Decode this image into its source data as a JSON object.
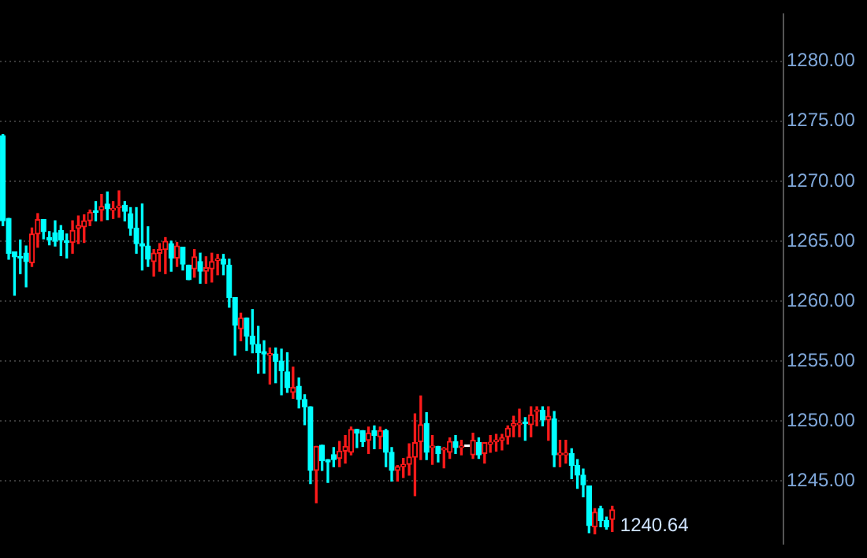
{
  "chart_data": {
    "type": "candlestick",
    "categories": [
      null,
      null,
      null,
      null,
      null,
      null,
      null,
      null,
      null,
      null,
      null,
      null,
      null,
      null,
      null,
      null,
      null,
      null,
      null,
      null,
      null,
      null,
      null,
      null,
      null,
      null,
      null,
      null,
      null,
      null,
      null,
      null,
      null,
      null,
      null,
      null,
      null,
      null,
      null,
      null,
      null,
      null,
      null,
      null,
      null,
      null,
      null,
      null,
      null,
      null,
      null,
      null,
      null,
      null,
      null,
      null,
      null,
      null,
      null,
      null,
      null,
      null,
      null,
      null,
      null,
      null,
      null,
      null,
      null,
      null,
      null,
      null,
      null,
      null,
      null,
      null,
      null,
      null,
      null,
      null,
      null,
      null,
      null,
      null,
      null,
      null,
      null,
      null,
      null,
      null,
      null,
      null,
      null,
      null,
      null,
      null,
      null,
      null,
      null,
      null,
      null,
      null,
      null,
      null,
      null,
      null,
      null,
      null,
      null,
      null,
      null,
      null,
      null,
      null,
      null,
      null,
      null,
      null,
      null,
      null,
      null,
      null,
      null,
      null,
      null,
      null,
      null,
      null,
      null,
      null,
      null,
      null,
      null,
      null,
      null
    ],
    "ohlc": [
      [
        1273.8,
        1273.9,
        1266.3,
        1266.7
      ],
      [
        1266.9,
        1266.9,
        1263.5,
        1264.0
      ],
      [
        1264.1,
        1264.1,
        1260.5,
        1263.7
      ],
      [
        1263.7,
        1265.1,
        1262.3,
        1263.6
      ],
      [
        1264.0,
        1264.6,
        1261.2,
        1263.3
      ],
      [
        1263.2,
        1266.1,
        1262.9,
        1265.6
      ],
      [
        1265.6,
        1267.3,
        1264.5,
        1266.8
      ],
      [
        1266.8,
        1266.8,
        1265.2,
        1265.8
      ],
      [
        1265.3,
        1265.8,
        1264.7,
        1265.1
      ],
      [
        1265.7,
        1266.7,
        1264.6,
        1265.0
      ],
      [
        1265.9,
        1266.3,
        1263.8,
        1265.1
      ],
      [
        1265.0,
        1265.6,
        1263.6,
        1264.9
      ],
      [
        1264.9,
        1266.7,
        1264.0,
        1265.9
      ],
      [
        1266.1,
        1267.1,
        1264.8,
        1266.3
      ],
      [
        1266.2,
        1267.2,
        1264.9,
        1266.7
      ],
      [
        1266.7,
        1267.6,
        1266.3,
        1267.4
      ],
      [
        1267.5,
        1268.3,
        1266.7,
        1267.4
      ],
      [
        1267.6,
        1268.9,
        1266.7,
        1267.9
      ],
      [
        1268.1,
        1269.1,
        1266.8,
        1267.7
      ],
      [
        1267.6,
        1268.3,
        1266.9,
        1267.7
      ],
      [
        1267.8,
        1269.2,
        1267.0,
        1267.9
      ],
      [
        1268.0,
        1268.3,
        1266.7,
        1267.5
      ],
      [
        1267.3,
        1267.8,
        1265.5,
        1266.1
      ],
      [
        1266.1,
        1267.8,
        1264.0,
        1264.8
      ],
      [
        1264.8,
        1268.1,
        1262.6,
        1264.6
      ],
      [
        1264.6,
        1266.2,
        1262.9,
        1263.5
      ],
      [
        1263.3,
        1264.3,
        1262.1,
        1264.0
      ],
      [
        1264.0,
        1264.8,
        1262.5,
        1264.3
      ],
      [
        1264.3,
        1265.3,
        1262.3,
        1265.0
      ],
      [
        1264.8,
        1265.0,
        1262.5,
        1263.6
      ],
      [
        1263.6,
        1264.9,
        1262.9,
        1264.6
      ],
      [
        1264.5,
        1264.5,
        1262.6,
        1263.1
      ],
      [
        1263.0,
        1263.0,
        1261.8,
        1261.8
      ],
      [
        1262.7,
        1264.3,
        1262.0,
        1263.7
      ],
      [
        1263.3,
        1264.0,
        1261.5,
        1262.5
      ],
      [
        1262.5,
        1263.7,
        1261.5,
        1262.8
      ],
      [
        1262.7,
        1264.0,
        1261.6,
        1263.3
      ],
      [
        1263.4,
        1263.9,
        1262.2,
        1263.5
      ],
      [
        1263.5,
        1263.9,
        1262.2,
        1263.1
      ],
      [
        1263.0,
        1263.5,
        1259.5,
        1260.3
      ],
      [
        1260.3,
        1260.3,
        1255.5,
        1258.0
      ],
      [
        1257.7,
        1259.0,
        1256.7,
        1258.6
      ],
      [
        1258.6,
        1258.6,
        1255.9,
        1257.1
      ],
      [
        1257.1,
        1259.3,
        1255.7,
        1256.4
      ],
      [
        1256.4,
        1257.9,
        1254.0,
        1255.7
      ],
      [
        1255.8,
        1256.7,
        1254.0,
        1255.6
      ],
      [
        1255.5,
        1256.1,
        1253.1,
        1255.6
      ],
      [
        1255.6,
        1256.1,
        1253.2,
        1255.0
      ],
      [
        1255.0,
        1256.0,
        1252.2,
        1254.2
      ],
      [
        1254.1,
        1255.7,
        1252.4,
        1252.8
      ],
      [
        1252.4,
        1254.5,
        1251.9,
        1252.8
      ],
      [
        1252.9,
        1253.6,
        1251.1,
        1251.8
      ],
      [
        1251.8,
        1252.2,
        1249.7,
        1251.2
      ],
      [
        1251.2,
        1251.2,
        1244.8,
        1245.9
      ],
      [
        1245.9,
        1247.9,
        1243.2,
        1247.9
      ],
      [
        1248.0,
        1248.0,
        1245.9,
        1246.7
      ],
      [
        1246.8,
        1246.8,
        1244.9,
        1246.6
      ],
      [
        1247.2,
        1247.8,
        1246.2,
        1246.8
      ],
      [
        1246.9,
        1248.3,
        1246.2,
        1247.5
      ],
      [
        1247.5,
        1248.8,
        1246.5,
        1247.9
      ],
      [
        1247.4,
        1249.5,
        1247.2,
        1249.3
      ],
      [
        1249.3,
        1249.3,
        1247.8,
        1249.0
      ],
      [
        1249.2,
        1249.2,
        1247.9,
        1248.3
      ],
      [
        1248.4,
        1249.5,
        1247.3,
        1249.0
      ],
      [
        1249.2,
        1249.6,
        1247.7,
        1248.8
      ],
      [
        1248.7,
        1249.5,
        1247.7,
        1249.2
      ],
      [
        1249.2,
        1249.3,
        1246.2,
        1247.4
      ],
      [
        1247.4,
        1247.8,
        1245.0,
        1245.9
      ],
      [
        1245.9,
        1246.3,
        1245.0,
        1246.2
      ],
      [
        1246.2,
        1246.9,
        1245.3,
        1246.4
      ],
      [
        1246.4,
        1248.1,
        1245.5,
        1247.0
      ],
      [
        1247.0,
        1250.6,
        1243.8,
        1248.2
      ],
      [
        1248.3,
        1252.1,
        1246.8,
        1249.7
      ],
      [
        1249.8,
        1250.7,
        1246.8,
        1247.4
      ],
      [
        1247.8,
        1248.8,
        1246.4,
        1247.9
      ],
      [
        1247.9,
        1247.9,
        1246.6,
        1247.3
      ],
      [
        1247.6,
        1247.8,
        1246.1,
        1247.7
      ],
      [
        1247.4,
        1248.6,
        1246.9,
        1248.3
      ],
      [
        1248.3,
        1248.8,
        1247.3,
        1247.8
      ],
      [
        1247.8,
        1248.4,
        1247.2,
        1247.9
      ],
      [
        1247.9,
        1247.9,
        1247.9,
        1247.9
      ],
      [
        1247.2,
        1249.0,
        1246.9,
        1248.4
      ],
      [
        1248.2,
        1248.6,
        1246.9,
        1247.2
      ],
      [
        1247.3,
        1248.2,
        1246.5,
        1248.2
      ],
      [
        1248.1,
        1248.8,
        1247.4,
        1248.2
      ],
      [
        1248.3,
        1248.9,
        1247.5,
        1248.4
      ],
      [
        1248.4,
        1248.9,
        1247.6,
        1248.6
      ],
      [
        1248.7,
        1249.6,
        1248.1,
        1249.4
      ],
      [
        1249.6,
        1250.4,
        1248.7,
        1249.8
      ],
      [
        1249.7,
        1251.0,
        1248.7,
        1249.8
      ],
      [
        1249.9,
        1250.3,
        1248.4,
        1249.8
      ],
      [
        1249.7,
        1251.2,
        1248.7,
        1250.5
      ],
      [
        1250.8,
        1251.2,
        1249.6,
        1250.9
      ],
      [
        1250.9,
        1251.2,
        1249.6,
        1250.1
      ],
      [
        1250.1,
        1251.2,
        1248.4,
        1250.4
      ],
      [
        1250.2,
        1250.8,
        1246.2,
        1247.2
      ],
      [
        1247.2,
        1248.4,
        1246.2,
        1247.3
      ],
      [
        1247.2,
        1248.4,
        1246.5,
        1247.3
      ],
      [
        1247.3,
        1247.7,
        1245.2,
        1246.3
      ],
      [
        1246.3,
        1246.8,
        1244.4,
        1245.5
      ],
      [
        1245.5,
        1246.0,
        1243.7,
        1244.7
      ],
      [
        1244.6,
        1244.6,
        1240.7,
        1241.3
      ],
      [
        1241.2,
        1242.7,
        1240.6,
        1242.4
      ],
      [
        1242.7,
        1242.9,
        1241.2,
        1241.7
      ],
      [
        1241.7,
        1242.0,
        1241.0,
        1241.2
      ],
      [
        1241.8,
        1242.9,
        1240.8,
        1242.6
      ],
      null,
      null,
      null,
      null,
      null,
      null,
      null,
      null,
      null,
      null,
      null,
      null,
      null,
      null,
      null,
      null,
      null,
      null,
      null,
      null,
      null,
      null,
      null,
      null,
      null,
      null,
      null,
      null,
      null
    ],
    "colors": [
      "#00ffff",
      "#00ffff",
      "#00ffff",
      "#00ffff",
      "#00ffff",
      "#ff1a1a",
      "#ff1a1a",
      "#00ffff",
      "#00ffff",
      "#00ffff",
      "#00ffff",
      "#00ffff",
      "#ff1a1a",
      "#ff1a1a",
      "#ff1a1a",
      "#ff1a1a",
      "#00ffff",
      "#ff1a1a",
      "#00ffff",
      "#ff1a1a",
      "#ff1a1a",
      "#00ffff",
      "#00ffff",
      "#00ffff",
      "#00ffff",
      "#00ffff",
      "#ff1a1a",
      "#ff1a1a",
      "#ff1a1a",
      "#00ffff",
      "#ff1a1a",
      "#00ffff",
      "#00ffff",
      "#ff1a1a",
      "#00ffff",
      "#ff1a1a",
      "#ff1a1a",
      "#ff1a1a",
      "#00ffff",
      "#00ffff",
      "#00ffff",
      "#ff1a1a",
      "#00ffff",
      "#00ffff",
      "#00ffff",
      "#00ffff",
      "#ff1a1a",
      "#00ffff",
      "#00ffff",
      "#00ffff",
      "#ff1a1a",
      "#00ffff",
      "#00ffff",
      "#00ffff",
      "#ff1a1a",
      "#00ffff",
      "#00ffff",
      "#00ffff",
      "#ff1a1a",
      "#ff1a1a",
      "#ff1a1a",
      "#00ffff",
      "#00ffff",
      "#ff1a1a",
      "#00ffff",
      "#ff1a1a",
      "#00ffff",
      "#00ffff",
      "#ff1a1a",
      "#ff1a1a",
      "#ff1a1a",
      "#ff1a1a",
      "#ff1a1a",
      "#00ffff",
      "#ff1a1a",
      "#00ffff",
      "#ff1a1a",
      "#ff1a1a",
      "#00ffff",
      "#ff1a1a",
      "#ffffff",
      "#ff1a1a",
      "#00ffff",
      "#ff1a1a",
      "#ff1a1a",
      "#ff1a1a",
      "#ff1a1a",
      "#ff1a1a",
      "#ff1a1a",
      "#ff1a1a",
      "#00ffff",
      "#ff1a1a",
      "#ff1a1a",
      "#00ffff",
      "#ff1a1a",
      "#00ffff",
      "#ff1a1a",
      "#ff1a1a",
      "#00ffff",
      "#00ffff",
      "#00ffff",
      "#00ffff",
      "#ff1a1a",
      "#00ffff",
      "#00ffff",
      "#ff1a1a",
      null,
      null,
      null,
      null,
      null,
      null,
      null,
      null,
      null,
      null,
      null,
      null,
      null,
      null,
      null,
      null,
      null,
      null,
      null,
      null,
      null,
      null,
      null,
      null,
      null,
      null,
      null,
      null,
      null
    ],
    "ylim": [
      1239.8,
      1283.9
    ],
    "yticks": [
      {
        "value": 1245,
        "label": "1245.00"
      },
      {
        "value": 1250,
        "label": "1250.00"
      },
      {
        "value": 1255,
        "label": "1255.00"
      },
      {
        "value": 1260,
        "label": "1260.00"
      },
      {
        "value": 1265,
        "label": "1265.00"
      },
      {
        "value": 1270,
        "label": "1270.00"
      },
      {
        "value": 1275,
        "label": "1275.00"
      },
      {
        "value": 1280,
        "label": "1280.00"
      }
    ],
    "grid": "y",
    "tick_labels": "y",
    "annotations": [
      "1240.64"
    ]
  }
}
